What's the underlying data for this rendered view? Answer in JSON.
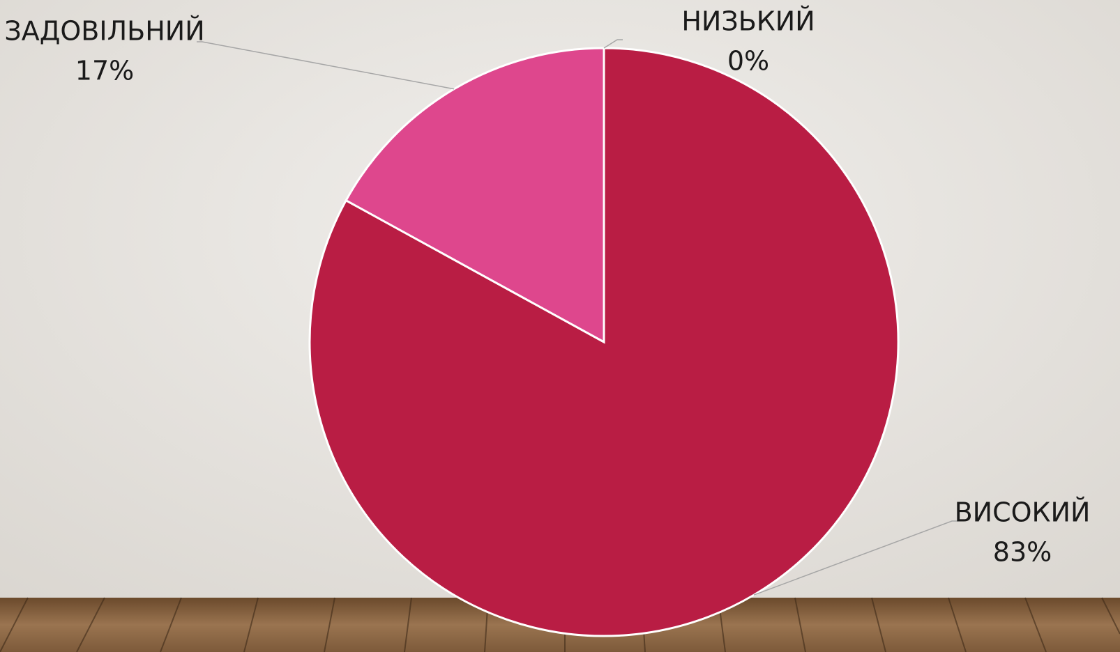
{
  "chart_data": {
    "type": "pie",
    "categories": [
      "ВИСОКИЙ",
      "ЗАДОВІЛЬНИЙ",
      "НИЗЬКИЙ"
    ],
    "values": [
      83,
      17,
      0
    ],
    "value_labels": [
      "83%",
      "17%",
      "0%"
    ],
    "colors": [
      "#b91d44",
      "#de478d",
      "#8f1a3a"
    ]
  }
}
